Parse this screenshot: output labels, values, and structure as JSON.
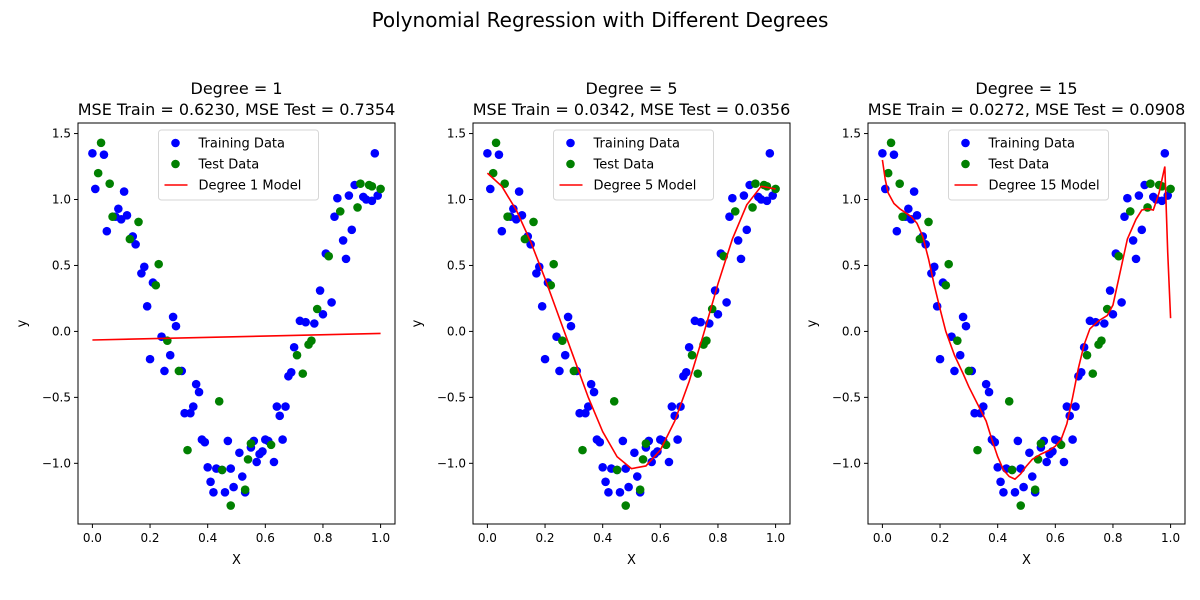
{
  "figure": {
    "suptitle": "Polynomial Regression with Different Degrees"
  },
  "chart_data": [
    {
      "type": "scatter",
      "title_line1": "Degree = 1",
      "title_line2": "MSE Train = 0.6230, MSE Test = 0.7354",
      "xlabel": "X",
      "ylabel": "y",
      "xlim": [
        -0.05,
        1.05
      ],
      "ylim": [
        -1.46,
        1.58
      ],
      "xticks": [
        0.0,
        0.2,
        0.4,
        0.6,
        0.8,
        1.0
      ],
      "xtick_labels": [
        "0.0",
        "0.2",
        "0.4",
        "0.6",
        "0.8",
        "1.0"
      ],
      "yticks": [
        -1.0,
        -0.5,
        0.0,
        0.5,
        1.0,
        1.5
      ],
      "ytick_labels": [
        "−1.0",
        "−0.5",
        "0.0",
        "0.5",
        "1.0",
        "1.5"
      ],
      "legend": {
        "placement": "upper-center",
        "entries": [
          "Training Data",
          "Test Data",
          "Degree 1 Model"
        ]
      },
      "model": {
        "name": "Degree 1 Model",
        "color": "#ff0000",
        "x": [
          0.0,
          1.0
        ],
        "y": [
          -0.065,
          -0.015
        ]
      }
    },
    {
      "type": "scatter",
      "title_line1": "Degree = 5",
      "title_line2": "MSE Train = 0.0342, MSE Test = 0.0356",
      "xlabel": "X",
      "ylabel": "y",
      "xlim": [
        -0.05,
        1.05
      ],
      "ylim": [
        -1.46,
        1.58
      ],
      "xticks": [
        0.0,
        0.2,
        0.4,
        0.6,
        0.8,
        1.0
      ],
      "xtick_labels": [
        "0.0",
        "0.2",
        "0.4",
        "0.6",
        "0.8",
        "1.0"
      ],
      "yticks": [
        -1.0,
        -0.5,
        0.0,
        0.5,
        1.0,
        1.5
      ],
      "ytick_labels": [
        "−1.0",
        "−0.5",
        "0.0",
        "0.5",
        "1.0",
        "1.5"
      ],
      "legend": {
        "placement": "upper-center",
        "entries": [
          "Training Data",
          "Test Data",
          "Degree 5 Model"
        ]
      },
      "model": {
        "name": "Degree 5 Model",
        "color": "#ff0000",
        "x": [
          0.0,
          0.05,
          0.1,
          0.15,
          0.2,
          0.25,
          0.3,
          0.35,
          0.4,
          0.45,
          0.5,
          0.55,
          0.6,
          0.65,
          0.7,
          0.75,
          0.8,
          0.85,
          0.9,
          0.95,
          1.0
        ],
        "y": [
          1.2,
          1.1,
          0.92,
          0.68,
          0.4,
          0.1,
          -0.2,
          -0.5,
          -0.76,
          -0.95,
          -1.04,
          -1.02,
          -0.9,
          -0.68,
          -0.38,
          -0.02,
          0.36,
          0.7,
          0.96,
          1.1,
          1.08
        ]
      }
    },
    {
      "type": "scatter",
      "title_line1": "Degree = 15",
      "title_line2": "MSE Train = 0.0272, MSE Test = 0.0908",
      "xlabel": "X",
      "ylabel": "y",
      "xlim": [
        -0.05,
        1.05
      ],
      "ylim": [
        -1.46,
        1.58
      ],
      "xticks": [
        0.0,
        0.2,
        0.4,
        0.6,
        0.8,
        1.0
      ],
      "xtick_labels": [
        "0.0",
        "0.2",
        "0.4",
        "0.6",
        "0.8",
        "1.0"
      ],
      "yticks": [
        -1.0,
        -0.5,
        0.0,
        0.5,
        1.0,
        1.5
      ],
      "ytick_labels": [
        "−1.0",
        "−0.5",
        "0.0",
        "0.5",
        "1.0",
        "1.5"
      ],
      "legend": {
        "placement": "upper-center",
        "entries": [
          "Training Data",
          "Test Data",
          "Degree 15 Model"
        ]
      },
      "model": {
        "name": "Degree 15 Model",
        "color": "#ff0000",
        "x": [
          0.0,
          0.01,
          0.02,
          0.04,
          0.06,
          0.08,
          0.1,
          0.12,
          0.14,
          0.16,
          0.18,
          0.2,
          0.22,
          0.25,
          0.28,
          0.3,
          0.33,
          0.36,
          0.38,
          0.4,
          0.42,
          0.44,
          0.46,
          0.48,
          0.5,
          0.52,
          0.55,
          0.58,
          0.6,
          0.62,
          0.64,
          0.66,
          0.68,
          0.7,
          0.72,
          0.75,
          0.78,
          0.8,
          0.82,
          0.85,
          0.88,
          0.9,
          0.92,
          0.94,
          0.96,
          0.97,
          0.98,
          0.99,
          1.0
        ],
        "y": [
          1.3,
          1.15,
          1.05,
          0.97,
          0.93,
          0.9,
          0.87,
          0.82,
          0.72,
          0.55,
          0.35,
          0.17,
          0.0,
          -0.18,
          -0.32,
          -0.42,
          -0.55,
          -0.68,
          -0.82,
          -0.95,
          -1.05,
          -1.1,
          -1.12,
          -1.08,
          -1.02,
          -0.97,
          -0.93,
          -0.9,
          -0.87,
          -0.82,
          -0.7,
          -0.5,
          -0.28,
          -0.1,
          0.02,
          0.08,
          0.12,
          0.2,
          0.4,
          0.7,
          0.85,
          0.92,
          0.93,
          0.92,
          1.05,
          1.15,
          1.25,
          0.6,
          0.1
        ]
      }
    }
  ],
  "shared_data": {
    "training": {
      "name": "Training Data",
      "color": "#0000ff",
      "points": [
        [
          0.0,
          1.35
        ],
        [
          0.01,
          1.08
        ],
        [
          0.04,
          1.34
        ],
        [
          0.05,
          0.76
        ],
        [
          0.08,
          0.87
        ],
        [
          0.09,
          0.93
        ],
        [
          0.1,
          0.85
        ],
        [
          0.11,
          1.06
        ],
        [
          0.12,
          0.88
        ],
        [
          0.14,
          0.72
        ],
        [
          0.15,
          0.66
        ],
        [
          0.17,
          0.44
        ],
        [
          0.18,
          0.49
        ],
        [
          0.19,
          0.19
        ],
        [
          0.2,
          -0.21
        ],
        [
          0.21,
          0.37
        ],
        [
          0.24,
          -0.04
        ],
        [
          0.25,
          -0.3
        ],
        [
          0.27,
          -0.18
        ],
        [
          0.28,
          0.11
        ],
        [
          0.29,
          0.04
        ],
        [
          0.31,
          -0.3
        ],
        [
          0.32,
          -0.62
        ],
        [
          0.34,
          -0.62
        ],
        [
          0.35,
          -0.57
        ],
        [
          0.36,
          -0.4
        ],
        [
          0.37,
          -0.46
        ],
        [
          0.38,
          -0.82
        ],
        [
          0.39,
          -0.84
        ],
        [
          0.4,
          -1.03
        ],
        [
          0.41,
          -1.14
        ],
        [
          0.42,
          -1.22
        ],
        [
          0.43,
          -1.04
        ],
        [
          0.45,
          -1.05
        ],
        [
          0.46,
          -1.22
        ],
        [
          0.47,
          -0.83
        ],
        [
          0.48,
          -1.04
        ],
        [
          0.49,
          -1.18
        ],
        [
          0.51,
          -0.92
        ],
        [
          0.52,
          -1.1
        ],
        [
          0.53,
          -1.22
        ],
        [
          0.55,
          -0.88
        ],
        [
          0.56,
          -0.83
        ],
        [
          0.57,
          -0.99
        ],
        [
          0.58,
          -0.93
        ],
        [
          0.59,
          -0.91
        ],
        [
          0.6,
          -0.82
        ],
        [
          0.61,
          -0.83
        ],
        [
          0.63,
          -0.99
        ],
        [
          0.64,
          -0.57
        ],
        [
          0.65,
          -0.64
        ],
        [
          0.66,
          -0.82
        ],
        [
          0.67,
          -0.57
        ],
        [
          0.68,
          -0.34
        ],
        [
          0.69,
          -0.31
        ],
        [
          0.7,
          -0.12
        ],
        [
          0.72,
          0.08
        ],
        [
          0.74,
          0.07
        ],
        [
          0.77,
          0.06
        ],
        [
          0.79,
          0.31
        ],
        [
          0.8,
          0.13
        ],
        [
          0.81,
          0.59
        ],
        [
          0.83,
          0.22
        ],
        [
          0.84,
          0.87
        ],
        [
          0.85,
          1.01
        ],
        [
          0.87,
          0.69
        ],
        [
          0.88,
          0.55
        ],
        [
          0.89,
          1.03
        ],
        [
          0.9,
          0.77
        ],
        [
          0.91,
          1.11
        ],
        [
          0.94,
          1.02
        ],
        [
          0.95,
          1.0
        ],
        [
          0.97,
          0.99
        ],
        [
          0.98,
          1.35
        ],
        [
          0.99,
          1.03
        ]
      ]
    },
    "test": {
      "name": "Test Data",
      "color": "#008000",
      "points": [
        [
          0.02,
          1.2
        ],
        [
          0.03,
          1.43
        ],
        [
          0.06,
          1.12
        ],
        [
          0.07,
          0.87
        ],
        [
          0.13,
          0.7
        ],
        [
          0.16,
          0.83
        ],
        [
          0.22,
          0.35
        ],
        [
          0.23,
          0.51
        ],
        [
          0.26,
          -0.07
        ],
        [
          0.3,
          -0.3
        ],
        [
          0.33,
          -0.9
        ],
        [
          0.44,
          -0.53
        ],
        [
          0.45,
          -1.05
        ],
        [
          0.48,
          -1.32
        ],
        [
          0.53,
          -1.2
        ],
        [
          0.54,
          -0.97
        ],
        [
          0.55,
          -0.85
        ],
        [
          0.62,
          -0.86
        ],
        [
          0.71,
          -0.18
        ],
        [
          0.73,
          -0.32
        ],
        [
          0.75,
          -0.1
        ],
        [
          0.76,
          -0.07
        ],
        [
          0.78,
          0.17
        ],
        [
          0.82,
          0.57
        ],
        [
          0.86,
          0.91
        ],
        [
          0.92,
          0.94
        ],
        [
          0.93,
          1.12
        ],
        [
          0.96,
          1.11
        ],
        [
          0.97,
          1.1
        ],
        [
          1.0,
          1.08
        ]
      ]
    }
  }
}
